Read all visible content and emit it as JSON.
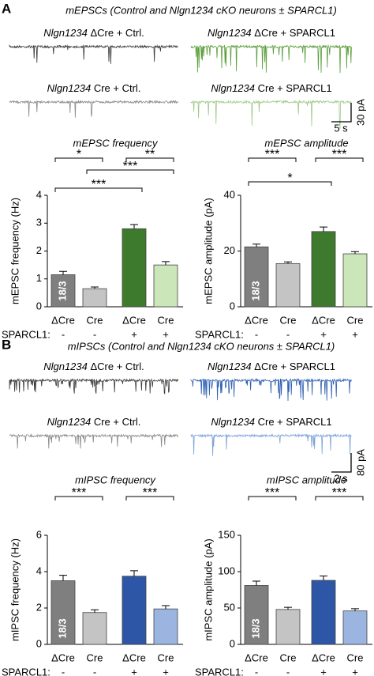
{
  "panels": [
    {
      "letter": "A",
      "title": "mEPSCs (Control and Nlgn1234 cKO neurons ± SPARCL1)",
      "traces": [
        {
          "gene": "Nlgn1234",
          "condition": "ΔCre + Ctrl.",
          "color": "#3a3a3a"
        },
        {
          "gene": "Nlgn1234",
          "condition": "ΔCre + SPARCL1",
          "color": "#5a9e3a"
        },
        {
          "gene": "Nlgn1234",
          "condition": "Cre + Ctrl.",
          "color": "#8a8a8a"
        },
        {
          "gene": "Nlgn1234",
          "condition": "Cre + SPARCL1",
          "color": "#9fc98a"
        }
      ],
      "scale_x": "5 s",
      "scale_y": "30 pA"
    },
    {
      "letter": "B",
      "title": "mIPSCs (Control and Nlgn1234 cKO neurons ± SPARCL1)",
      "traces": [
        {
          "gene": "Nlgn1234",
          "condition": "ΔCre + Ctrl.",
          "color": "#3a3a3a"
        },
        {
          "gene": "Nlgn1234",
          "condition": "ΔCre + SPARCL1",
          "color": "#2d5fb0"
        },
        {
          "gene": "Nlgn1234",
          "condition": "Cre + Ctrl.",
          "color": "#8a8a8a"
        },
        {
          "gene": "Nlgn1234",
          "condition": "Cre + SPARCL1",
          "color": "#7fa3d8"
        }
      ],
      "scale_x": "2 s",
      "scale_y": "80 pA"
    }
  ],
  "chart_data": [
    {
      "type": "bar",
      "title": "mEPSC frequency",
      "ylabel": "mEPSC frequency (Hz)",
      "categories": [
        "ΔCre",
        "Cre",
        "ΔCre",
        "Cre"
      ],
      "row_label": "SPARCL1:",
      "row_values": [
        "-",
        "-",
        "+",
        "+"
      ],
      "values": [
        1.15,
        0.65,
        2.8,
        1.5
      ],
      "errors": [
        0.12,
        0.06,
        0.15,
        0.12
      ],
      "colors": [
        "#7f7f7f",
        "#c4c4c4",
        "#3e7a2e",
        "#cbe6b9"
      ],
      "n_label": "18/3",
      "ylim": [
        0,
        4
      ],
      "yticks": [
        0,
        1,
        2,
        3,
        4
      ],
      "significance": [
        {
          "bars": [
            0,
            1
          ],
          "label": "*"
        },
        {
          "bars": [
            2,
            3
          ],
          "label": "**"
        },
        {
          "bars": [
            1,
            3
          ],
          "label": "***"
        },
        {
          "bars": [
            0,
            2
          ],
          "label": "***"
        }
      ]
    },
    {
      "type": "bar",
      "title": "mEPSC amplitude",
      "ylabel": "mEPSC amplitude (pA)",
      "categories": [
        "ΔCre",
        "Cre",
        "ΔCre",
        "Cre"
      ],
      "row_label": "SPARCL1:",
      "row_values": [
        "-",
        "-",
        "+",
        "+"
      ],
      "values": [
        21.5,
        15.5,
        27,
        19
      ],
      "errors": [
        1,
        0.6,
        1.6,
        0.8
      ],
      "colors": [
        "#7f7f7f",
        "#c4c4c4",
        "#3e7a2e",
        "#cbe6b9"
      ],
      "n_label": "18/3",
      "ylim": [
        0,
        40
      ],
      "yticks": [
        0,
        20,
        40
      ],
      "significance": [
        {
          "bars": [
            0,
            1
          ],
          "label": "***"
        },
        {
          "bars": [
            2,
            3
          ],
          "label": "***"
        },
        {
          "bars": [
            0,
            2
          ],
          "label": "*"
        }
      ]
    },
    {
      "type": "bar",
      "title": "mIPSC frequency",
      "ylabel": "mIPSC frequency (Hz)",
      "categories": [
        "ΔCre",
        "Cre",
        "ΔCre",
        "Cre"
      ],
      "row_label": "SPARCL1:",
      "row_values": [
        "-",
        "-",
        "+",
        "+"
      ],
      "values": [
        3.5,
        1.75,
        3.75,
        1.95
      ],
      "errors": [
        0.3,
        0.15,
        0.3,
        0.18
      ],
      "colors": [
        "#7f7f7f",
        "#c4c4c4",
        "#2e56a6",
        "#9bb5e0"
      ],
      "n_label": "18/3",
      "ylim": [
        0,
        6
      ],
      "yticks": [
        0,
        2,
        4,
        6
      ],
      "significance": [
        {
          "bars": [
            0,
            1
          ],
          "label": "***"
        },
        {
          "bars": [
            2,
            3
          ],
          "label": "***"
        }
      ]
    },
    {
      "type": "bar",
      "title": "mIPSC amplitude",
      "ylabel": "mIPSC amplitude (pA)",
      "categories": [
        "ΔCre",
        "Cre",
        "ΔCre",
        "Cre"
      ],
      "row_label": "SPARCL1:",
      "row_values": [
        "-",
        "-",
        "+",
        "+"
      ],
      "values": [
        81,
        48,
        88,
        46
      ],
      "errors": [
        6,
        3,
        6,
        3
      ],
      "colors": [
        "#7f7f7f",
        "#c4c4c4",
        "#2e56a6",
        "#9bb5e0"
      ],
      "n_label": "18/3",
      "ylim": [
        0,
        150
      ],
      "yticks": [
        0,
        50,
        100,
        150
      ],
      "significance": [
        {
          "bars": [
            0,
            1
          ],
          "label": "***"
        },
        {
          "bars": [
            2,
            3
          ],
          "label": "***"
        }
      ]
    }
  ]
}
